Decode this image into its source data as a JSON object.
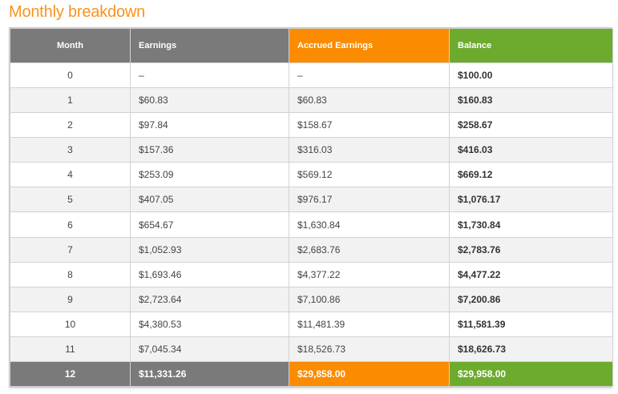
{
  "title": "Monthly breakdown",
  "colors": {
    "title": "#f7931e",
    "header_gray": "#7a7a7a",
    "header_orange": "#fb8b00",
    "header_green": "#6cab2e"
  },
  "table": {
    "headers": {
      "month": "Month",
      "earnings": "Earnings",
      "accrued_earnings": "Accrued Earnings",
      "balance": "Balance"
    },
    "rows": [
      {
        "month": "0",
        "earnings": "–",
        "accrued": "–",
        "balance": "$100.00"
      },
      {
        "month": "1",
        "earnings": "$60.83",
        "accrued": "$60.83",
        "balance": "$160.83"
      },
      {
        "month": "2",
        "earnings": "$97.84",
        "accrued": "$158.67",
        "balance": "$258.67"
      },
      {
        "month": "3",
        "earnings": "$157.36",
        "accrued": "$316.03",
        "balance": "$416.03"
      },
      {
        "month": "4",
        "earnings": "$253.09",
        "accrued": "$569.12",
        "balance": "$669.12"
      },
      {
        "month": "5",
        "earnings": "$407.05",
        "accrued": "$976.17",
        "balance": "$1,076.17"
      },
      {
        "month": "6",
        "earnings": "$654.67",
        "accrued": "$1,630.84",
        "balance": "$1,730.84"
      },
      {
        "month": "7",
        "earnings": "$1,052.93",
        "accrued": "$2,683.76",
        "balance": "$2,783.76"
      },
      {
        "month": "8",
        "earnings": "$1,693.46",
        "accrued": "$4,377.22",
        "balance": "$4,477.22"
      },
      {
        "month": "9",
        "earnings": "$2,723.64",
        "accrued": "$7,100.86",
        "balance": "$7,200.86"
      },
      {
        "month": "10",
        "earnings": "$4,380.53",
        "accrued": "$11,481.39",
        "balance": "$11,581.39"
      },
      {
        "month": "11",
        "earnings": "$7,045.34",
        "accrued": "$18,526.73",
        "balance": "$18,626.73"
      }
    ],
    "footer": {
      "month": "12",
      "earnings": "$11,331.26",
      "accrued": "$29,858.00",
      "balance": "$29,958.00"
    }
  }
}
